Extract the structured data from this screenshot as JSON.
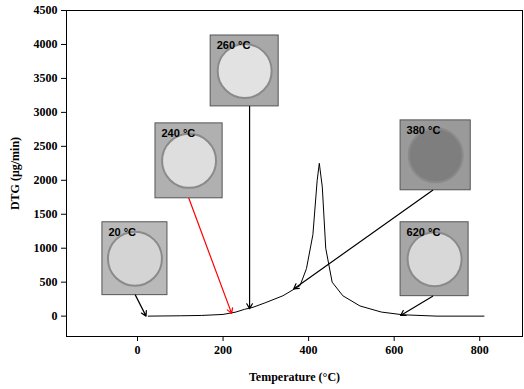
{
  "chart_data": {
    "type": "line",
    "x_label": "Temperature (°C)",
    "y_label": "DTG (μg/min)",
    "color": "#000000",
    "x": [
      25,
      100,
      150,
      200,
      230,
      250,
      270,
      300,
      340,
      380,
      395,
      410,
      420,
      425,
      432,
      440,
      455,
      480,
      520,
      570,
      620,
      700,
      810
    ],
    "values": [
      0,
      5,
      10,
      25,
      60,
      100,
      130,
      200,
      300,
      450,
      700,
      1200,
      2000,
      2250,
      1900,
      1000,
      500,
      300,
      150,
      60,
      20,
      0,
      0
    ],
    "xlim": [
      -166,
      900
    ],
    "xticks": [
      0,
      200,
      400,
      600,
      800
    ],
    "ylim": [
      -300,
      4500
    ],
    "yticks": [
      0,
      500,
      1000,
      1500,
      2000,
      2500,
      3000,
      3500,
      4000,
      4500
    ],
    "annotations": [
      {
        "text": "20 °C",
        "x": 20,
        "y": 0,
        "color": "#000000"
      },
      {
        "text": "240 °C",
        "x": 220,
        "y": 40,
        "color": "#ff0000"
      },
      {
        "text": "260 °C",
        "x": 262,
        "y": 110,
        "color": "#000000"
      },
      {
        "text": "380 °C",
        "x": 365,
        "y": 400,
        "color": "#000000"
      },
      {
        "text": "620 °C",
        "x": 615,
        "y": 10,
        "color": "#000000"
      }
    ]
  }
}
